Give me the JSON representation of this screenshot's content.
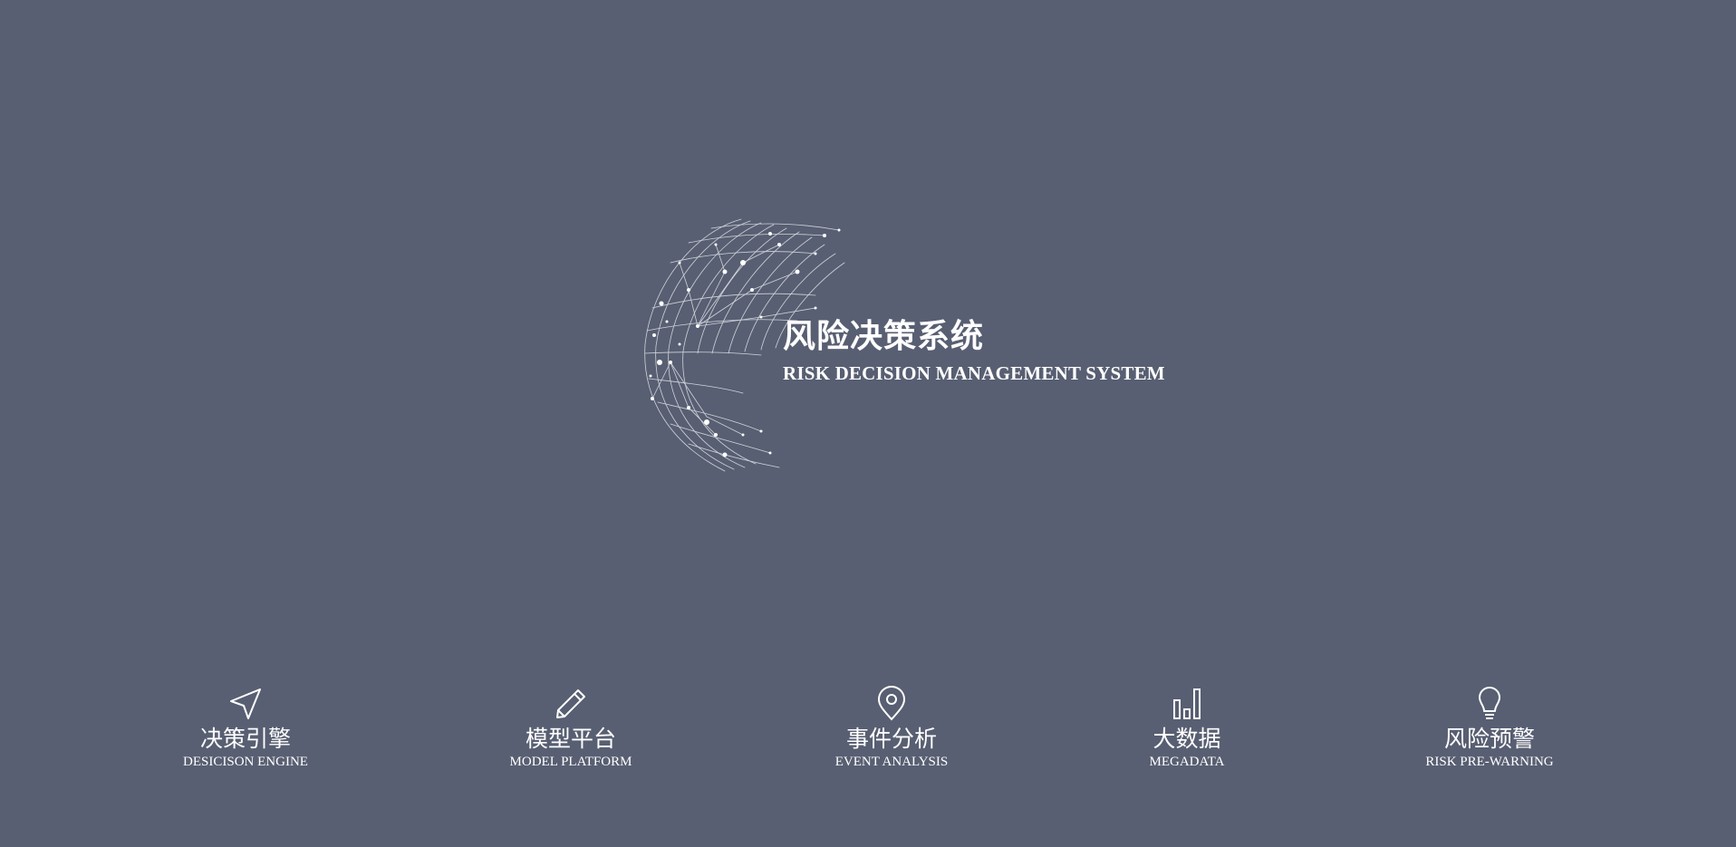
{
  "hero": {
    "title": "风险决策系统",
    "subtitle": "RISK DECISION MANAGEMENT SYSTEM"
  },
  "features": [
    {
      "zh": "决策引擎",
      "en": "DESICISON ENGINE",
      "icon": "navigation-arrow-icon"
    },
    {
      "zh": "模型平台",
      "en": "MODEL PLATFORM",
      "icon": "pencil-icon"
    },
    {
      "zh": "事件分析",
      "en": "EVENT ANALYSIS",
      "icon": "location-pin-icon"
    },
    {
      "zh": "大数据",
      "en": "MEGADATA",
      "icon": "bar-chart-icon"
    },
    {
      "zh": "风险预警",
      "en": "RISK PRE-WARNING",
      "icon": "lightbulb-icon"
    }
  ],
  "colors": {
    "background": "#585f72",
    "foreground": "#ffffff"
  }
}
